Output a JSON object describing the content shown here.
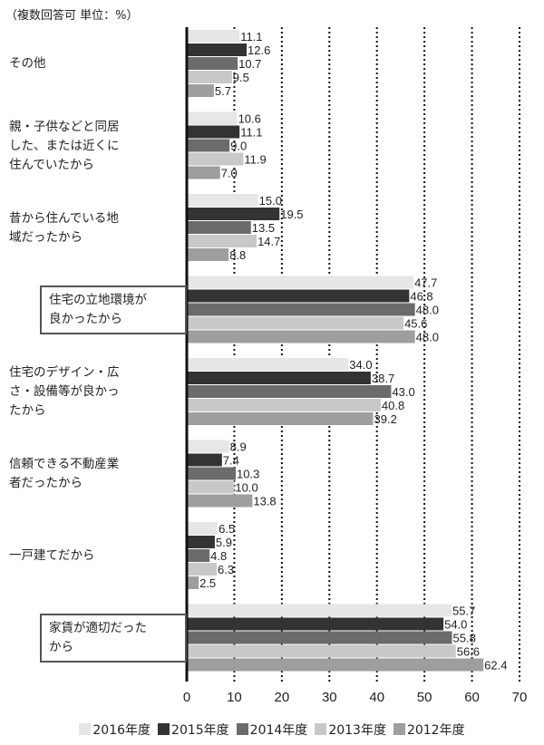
{
  "chart_data": {
    "type": "bar",
    "orientation": "horizontal",
    "note": "（複数回答可 単位：%）",
    "categories": [
      "その他",
      "親・子供などと同居した、または近くに住んでいたから",
      "昔から住んでいる地域だったから",
      "住宅の立地環境が良かったから",
      "住宅のデザイン・広さ・設備等が良かったから",
      "信頼できる不動産業者だったから",
      "一戸建てだから",
      "家賃が適切だったから"
    ],
    "category_lines": [
      [
        "その他"
      ],
      [
        "親・子供などと同居",
        "した、または近くに",
        "住んでいたから"
      ],
      [
        "昔から住んでいる地",
        "域だったから"
      ],
      [
        "住宅の立地環境が",
        "良かったから"
      ],
      [
        "住宅のデザイン・広",
        "さ・設備等が良かっ",
        "たから"
      ],
      [
        "信頼できる不動産業",
        "者だったから"
      ],
      [
        "一戸建てだから"
      ],
      [
        "家賃が適切だった",
        "から"
      ]
    ],
    "highlighted_categories": [
      3,
      7
    ],
    "series": [
      {
        "name": "2016年度",
        "color": "#e6e6e6",
        "values": [
          11.1,
          10.6,
          15.0,
          47.7,
          34.0,
          8.9,
          6.5,
          55.7
        ]
      },
      {
        "name": "2015年度",
        "color": "#333333",
        "values": [
          12.6,
          11.1,
          19.5,
          46.8,
          38.7,
          7.4,
          5.9,
          54.0
        ]
      },
      {
        "name": "2014年度",
        "color": "#6b6b6b",
        "values": [
          10.7,
          9.0,
          13.5,
          48.0,
          43.0,
          10.3,
          4.8,
          55.8
        ]
      },
      {
        "name": "2013年度",
        "color": "#c8c8c8",
        "values": [
          9.5,
          11.9,
          14.7,
          45.6,
          40.8,
          10.0,
          6.3,
          56.6
        ]
      },
      {
        "name": "2012年度",
        "color": "#9e9e9e",
        "values": [
          5.7,
          7.0,
          8.8,
          48.0,
          39.2,
          13.8,
          2.5,
          62.4
        ]
      }
    ],
    "xlim": [
      0,
      70
    ],
    "xticks": [
      "0",
      "10",
      "20",
      "30",
      "40",
      "50",
      "60",
      "70"
    ],
    "grid": "vertical dotted",
    "legend": "bottom"
  }
}
